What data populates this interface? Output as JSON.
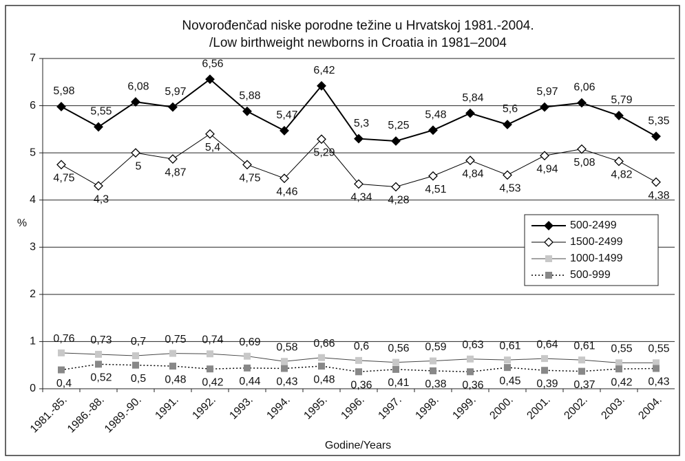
{
  "chart_data": {
    "type": "line",
    "title": [
      "Novorođenčad niske porodne težine u Hrvatskoj 1981.-2004.",
      "/Low birthweight newborns in Croatia in 1981–2004"
    ],
    "ylabel": "%",
    "xlabel": "Godine/Years",
    "categories": [
      "1981.-85.",
      "1986.-88.",
      "1989.-90.",
      "1991.",
      "1992.",
      "1993.",
      "1994.",
      "1995.",
      "1996.",
      "1997.",
      "1998.",
      "1999.",
      "2000.",
      "2001.",
      "2002.",
      "2003.",
      "2004."
    ],
    "ylim": [
      0,
      7
    ],
    "yticks": [
      0,
      1,
      2,
      3,
      4,
      5,
      6,
      7
    ],
    "grid": true,
    "legend": "right",
    "series": [
      {
        "name": "500-2499",
        "color": "#000000",
        "marker": "diamond-filled",
        "values": [
          5.98,
          5.55,
          6.08,
          5.97,
          6.56,
          5.88,
          5.47,
          6.42,
          5.3,
          5.25,
          5.48,
          5.84,
          5.6,
          5.97,
          6.06,
          5.79,
          5.35
        ],
        "value_labels": [
          "5,98",
          "5,55",
          "6,08",
          "5,97",
          "6,56",
          "5,88",
          "5,47",
          "6,42",
          "5,3",
          "5,25",
          "5,48",
          "5,84",
          "5,6",
          "5,97",
          "6,06",
          "5,79",
          "5,35"
        ]
      },
      {
        "name": "1500-2499",
        "color": "#000000",
        "marker": "diamond-open",
        "values": [
          4.75,
          4.3,
          5,
          4.87,
          5.4,
          4.75,
          4.46,
          5.29,
          4.34,
          4.28,
          4.51,
          4.84,
          4.53,
          4.94,
          5.08,
          4.82,
          4.38
        ],
        "value_labels": [
          "4,75",
          "4,3",
          "5",
          "4,87",
          "5,4",
          "4,75",
          "4,46",
          "5,29",
          "4,34",
          "4,28",
          "4,51",
          "4,84",
          "4,53",
          "4,94",
          "5,08",
          "4,82",
          "4,38"
        ]
      },
      {
        "name": "1000-1499",
        "color": "#c8c8c8",
        "marker": "square",
        "values": [
          0.76,
          0.73,
          0.7,
          0.75,
          0.74,
          0.69,
          0.58,
          0.66,
          0.6,
          0.56,
          0.59,
          0.63,
          0.61,
          0.64,
          0.61,
          0.55,
          0.55
        ],
        "value_labels": [
          "0,76",
          "0,73",
          "0,7",
          "0,75",
          "0,74",
          "0,69",
          "0,58",
          "0,66",
          "0,6",
          "0,56",
          "0,59",
          "0,63",
          "0,61",
          "0,64",
          "0,61",
          "0,55",
          "0,55"
        ]
      },
      {
        "name": "500-999",
        "color": "#888888",
        "marker": "square-dotted",
        "values": [
          0.4,
          0.52,
          0.5,
          0.48,
          0.42,
          0.44,
          0.43,
          0.48,
          0.36,
          0.41,
          0.38,
          0.36,
          0.45,
          0.39,
          0.37,
          0.42,
          0.43
        ],
        "value_labels": [
          "0,4",
          "0,52",
          "0,5",
          "0,48",
          "0,42",
          "0,44",
          "0,43",
          "0,48",
          "0,36",
          "0,41",
          "0,38",
          "0,36",
          "0,45",
          "0,39",
          "0,37",
          "0,42",
          "0,43"
        ]
      }
    ]
  }
}
